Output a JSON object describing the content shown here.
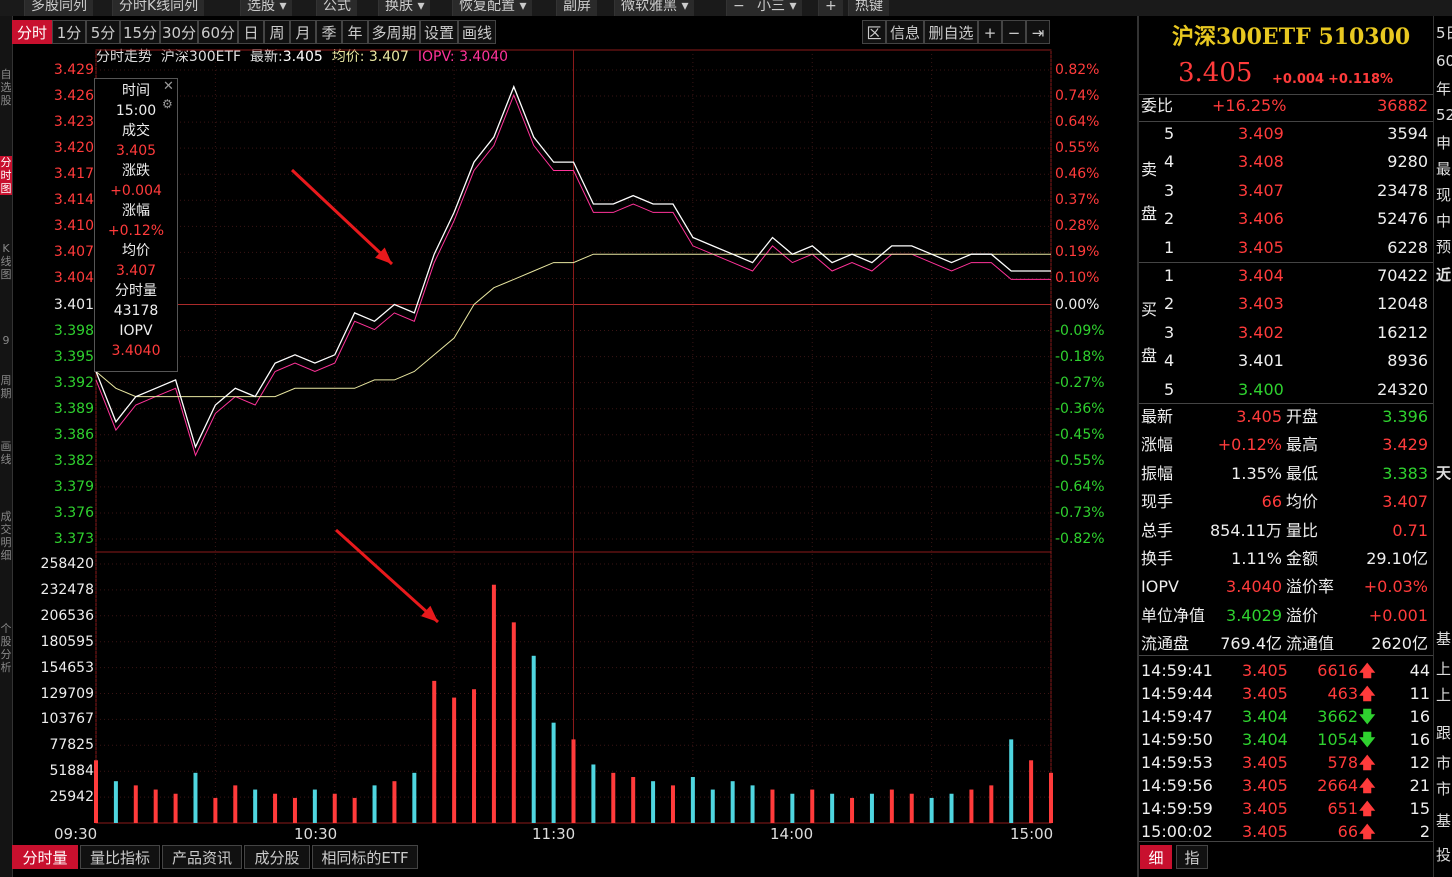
{
  "toolbar": {
    "items": [
      "多股同列",
      "分时K线同列",
      "选股",
      "公式",
      "换肤",
      "恢复配置",
      "副屏",
      "微软雅黑",
      "小三",
      "热键"
    ],
    "minus": "−",
    "plus": "+"
  },
  "left_strip": [
    "自选股",
    "分时图",
    "K线图",
    "9",
    "周期",
    "画线",
    "成交明细",
    "个股分析"
  ],
  "period_tabs": [
    "分时",
    "1分",
    "5分",
    "15分",
    "30分",
    "60分",
    "日",
    "周",
    "月",
    "季",
    "年",
    "多周期",
    "设置",
    "画线"
  ],
  "right_tools": [
    "区",
    "信息",
    "删自选",
    "+",
    "−",
    "⇥"
  ],
  "chart_title": {
    "name": "分时走势",
    "code": "沪深300ETF",
    "latest_label": "最新:",
    "latest": "3.405",
    "avg_label": "均价:",
    "avg": "3.407",
    "iopv_label": "IOPV:",
    "iopv": "3.4040"
  },
  "price_axis": {
    "left": [
      "3.429",
      "3.426",
      "3.423",
      "3.420",
      "3.417",
      "3.414",
      "3.410",
      "3.407",
      "3.404",
      "3.401",
      "3.398",
      "3.395",
      "3.392",
      "3.389",
      "3.386",
      "3.382",
      "3.379",
      "3.376",
      "3.373"
    ],
    "right": [
      "0.82%",
      "0.74%",
      "0.64%",
      "0.55%",
      "0.46%",
      "0.37%",
      "0.28%",
      "0.19%",
      "0.10%",
      "0.00%",
      "-0.09%",
      "-0.18%",
      "-0.27%",
      "-0.36%",
      "-0.45%",
      "-0.55%",
      "-0.64%",
      "-0.73%",
      "-0.82%"
    ],
    "prev_close": "3.401"
  },
  "volume_axis": [
    "258420",
    "232478",
    "206536",
    "180595",
    "154653",
    "129709",
    "103767",
    "77825",
    "51884",
    "25942"
  ],
  "time_axis": [
    "09:30",
    "10:30",
    "11:30",
    "14:00",
    "15:00"
  ],
  "tooltip": {
    "time_label": "时间",
    "time": "15:00",
    "deal_label": "成交",
    "deal": "3.405",
    "chg_label": "涨跌",
    "chg": "+0.004",
    "pct_label": "涨幅",
    "pct": "+0.12%",
    "avg_label": "均价",
    "avg": "3.407",
    "vol_label": "分时量",
    "vol": "43178",
    "iopv_label": "IOPV",
    "iopv": "3.4040"
  },
  "bottom_tabs": [
    "分时量",
    "量比指标",
    "产品资讯",
    "成分股",
    "相同标的ETF"
  ],
  "quote": {
    "name": "沪深300ETF 510300",
    "price": "3.405",
    "chg": "+0.004",
    "pct": "+0.118%"
  },
  "weibi": {
    "label": "委比",
    "pct": "+16.25%",
    "val": "36882"
  },
  "sell": {
    "label": [
      "卖",
      "盘"
    ],
    "rows": [
      [
        "5",
        "3.409",
        "3594"
      ],
      [
        "4",
        "3.408",
        "9280"
      ],
      [
        "3",
        "3.407",
        "23478"
      ],
      [
        "2",
        "3.406",
        "52476"
      ],
      [
        "1",
        "3.405",
        "6228"
      ]
    ]
  },
  "buy": {
    "label": [
      "买",
      "盘"
    ],
    "rows": [
      [
        "1",
        "3.404",
        "70422"
      ],
      [
        "2",
        "3.403",
        "12048"
      ],
      [
        "3",
        "3.402",
        "16212"
      ],
      [
        "4",
        "3.401",
        "8936"
      ],
      [
        "5",
        "3.400",
        "24320"
      ]
    ]
  },
  "stats": [
    [
      "最新",
      "3.405",
      "开盘",
      "3.396"
    ],
    [
      "涨幅",
      "+0.12%",
      "最高",
      "3.429"
    ],
    [
      "振幅",
      "1.35%",
      "最低",
      "3.383"
    ],
    [
      "现手",
      "66",
      "均价",
      "3.407"
    ],
    [
      "总手",
      "854.11万",
      "量比",
      "0.71"
    ],
    [
      "换手",
      "1.11%",
      "金额",
      "29.10亿"
    ],
    [
      "IOPV",
      "3.4040",
      "溢价率",
      "+0.03%"
    ],
    [
      "单位净值",
      "3.4029",
      "溢价",
      "+0.001"
    ],
    [
      "流通盘",
      "769.4亿",
      "流通值",
      "2620亿"
    ]
  ],
  "ticks": [
    [
      "14:59:41",
      "3.405",
      "6616",
      "up",
      "44"
    ],
    [
      "14:59:44",
      "3.405",
      "463",
      "up",
      "11"
    ],
    [
      "14:59:47",
      "3.404",
      "3662",
      "down",
      "16"
    ],
    [
      "14:59:50",
      "3.404",
      "1054",
      "down",
      "16"
    ],
    [
      "14:59:53",
      "3.405",
      "578",
      "up",
      "12"
    ],
    [
      "14:59:56",
      "3.405",
      "2664",
      "up",
      "21"
    ],
    [
      "14:59:59",
      "3.405",
      "651",
      "up",
      "15"
    ],
    [
      "15:00:02",
      "3.405",
      "66",
      "up",
      "2"
    ]
  ],
  "rp_bottom_tabs": [
    "细",
    "指"
  ],
  "far_right": [
    "5日",
    "60",
    "年",
    "52",
    "申",
    "最",
    "现",
    "中",
    "预",
    "近",
    "天",
    "基",
    "上",
    "上",
    "跟",
    "市",
    "市",
    "基",
    "投"
  ],
  "colors": {
    "up": "#ff3b3b",
    "down": "#2fd12f",
    "avg_line": "#e8e6a0",
    "price_line": "#ffffff",
    "iopv_line": "#ff3399",
    "title": "#e8c820"
  },
  "chart_data": {
    "type": "line",
    "title": "分时走势",
    "x": [
      "09:30",
      "09:35",
      "09:40",
      "09:45",
      "09:50",
      "09:55",
      "10:00",
      "10:05",
      "10:10",
      "10:15",
      "10:20",
      "10:25",
      "10:30",
      "10:35",
      "10:40",
      "10:45",
      "10:50",
      "10:55",
      "11:00",
      "11:05",
      "11:10",
      "11:15",
      "11:20",
      "11:25",
      "11:30",
      "13:05",
      "13:10",
      "13:15",
      "13:20",
      "13:25",
      "13:30",
      "13:35",
      "13:40",
      "13:45",
      "13:50",
      "13:55",
      "14:00",
      "14:05",
      "14:10",
      "14:15",
      "14:20",
      "14:25",
      "14:30",
      "14:35",
      "14:40",
      "14:45",
      "14:50",
      "14:55",
      "15:00"
    ],
    "ylim": [
      3.373,
      3.429
    ],
    "series": [
      {
        "name": "最新",
        "values": [
          3.393,
          3.387,
          3.39,
          3.391,
          3.392,
          3.384,
          3.389,
          3.391,
          3.39,
          3.394,
          3.395,
          3.394,
          3.395,
          3.4,
          3.399,
          3.401,
          3.4,
          3.407,
          3.412,
          3.418,
          3.421,
          3.427,
          3.421,
          3.418,
          3.418,
          3.413,
          3.413,
          3.414,
          3.413,
          3.413,
          3.409,
          3.408,
          3.407,
          3.406,
          3.409,
          3.407,
          3.408,
          3.406,
          3.407,
          3.406,
          3.408,
          3.408,
          3.407,
          3.406,
          3.407,
          3.407,
          3.405,
          3.405,
          3.405
        ]
      },
      {
        "name": "均价",
        "values": [
          3.393,
          3.391,
          3.39,
          3.39,
          3.39,
          3.39,
          3.39,
          3.39,
          3.39,
          3.39,
          3.391,
          3.391,
          3.391,
          3.391,
          3.392,
          3.392,
          3.393,
          3.395,
          3.397,
          3.401,
          3.403,
          3.404,
          3.405,
          3.406,
          3.406,
          3.407,
          3.407,
          3.407,
          3.407,
          3.407,
          3.407,
          3.407,
          3.407,
          3.407,
          3.407,
          3.407,
          3.407,
          3.407,
          3.407,
          3.407,
          3.407,
          3.407,
          3.407,
          3.407,
          3.407,
          3.407,
          3.407,
          3.407,
          3.407
        ]
      },
      {
        "name": "IOPV",
        "values": [
          3.392,
          3.386,
          3.389,
          3.39,
          3.391,
          3.383,
          3.388,
          3.39,
          3.389,
          3.393,
          3.394,
          3.393,
          3.394,
          3.399,
          3.398,
          3.4,
          3.399,
          3.406,
          3.411,
          3.417,
          3.42,
          3.426,
          3.42,
          3.417,
          3.417,
          3.412,
          3.412,
          3.413,
          3.412,
          3.412,
          3.408,
          3.407,
          3.406,
          3.405,
          3.408,
          3.406,
          3.407,
          3.405,
          3.406,
          3.405,
          3.407,
          3.407,
          3.406,
          3.405,
          3.406,
          3.406,
          3.404,
          3.404,
          3.404
        ]
      }
    ],
    "volume": [
      75000,
      50000,
      45000,
      40000,
      35000,
      60000,
      30000,
      45000,
      40000,
      35000,
      30000,
      40000,
      35000,
      30000,
      45000,
      50000,
      60000,
      170000,
      150000,
      160000,
      285000,
      240000,
      200000,
      120000,
      100000,
      70000,
      60000,
      55000,
      50000,
      45000,
      55000,
      40000,
      50000,
      45000,
      40000,
      35000,
      40000,
      35000,
      30000,
      35000,
      40000,
      35000,
      30000,
      35000,
      40000,
      45000,
      100000,
      75000,
      60000
    ],
    "vol_max": 285000
  }
}
